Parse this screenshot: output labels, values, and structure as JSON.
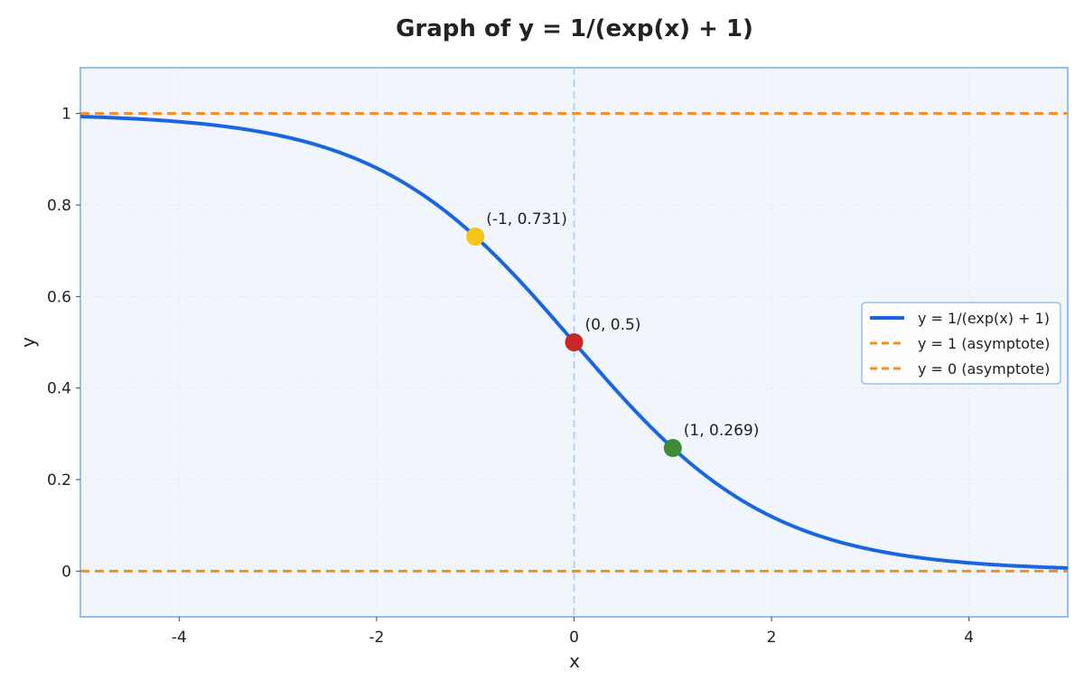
{
  "chart_data": {
    "type": "line",
    "title": "Graph of y = 1/(exp(x) + 1)",
    "xlabel": "x",
    "ylabel": "y",
    "xlim": [
      -5,
      5
    ],
    "ylim": [
      -0.1,
      1.1
    ],
    "x_ticks": [
      -4,
      -2,
      0,
      2,
      4
    ],
    "x_tick_labels": [
      "-4",
      "-2",
      "0",
      "2",
      "4"
    ],
    "y_ticks": [
      0,
      0.2,
      0.4,
      0.6,
      0.8,
      1
    ],
    "y_tick_labels": [
      "0",
      "0.2",
      "0.4",
      "0.6",
      "0.8",
      "1"
    ],
    "grid": true,
    "legend_position": "center-right",
    "series": [
      {
        "name": "y = 1/(exp(x) + 1)",
        "function": "1/(exp(x)+1)",
        "color": "#1a66e0",
        "style": "solid"
      },
      {
        "name": "y = 1 (asymptote)",
        "constant": 1,
        "color": "#f5901e",
        "style": "dashed"
      },
      {
        "name": "y = 0 (asymptote)",
        "constant": 0,
        "color": "#f5901e",
        "style": "dashed"
      }
    ],
    "points": [
      {
        "x": -1,
        "y": 0.731,
        "label": "(-1, 0.731)",
        "color": "#f5c518"
      },
      {
        "x": 0,
        "y": 0.5,
        "label": "(0, 0.5)",
        "color": "#c62828"
      },
      {
        "x": 1,
        "y": 0.269,
        "label": "(1, 0.269)",
        "color": "#3f8a37"
      }
    ],
    "vline": {
      "x": 0,
      "color": "#b7d2f2",
      "style": "dashed"
    },
    "colors": {
      "plot_bg": "#f0f6fc",
      "plot_border": "#99bdf0",
      "grid": "#dfe7f1",
      "text": "#222222"
    }
  }
}
